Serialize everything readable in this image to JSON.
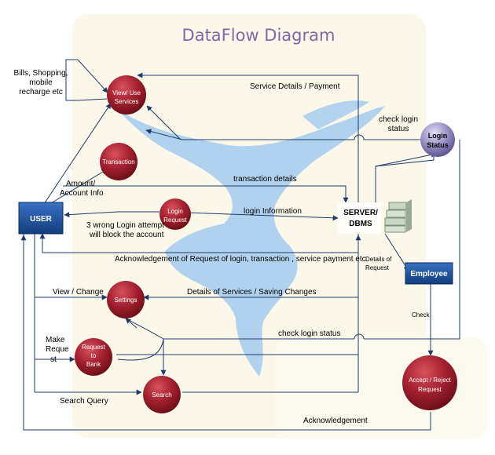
{
  "title": "DataFlow Diagram",
  "nodes": {
    "user": "USER",
    "view_use_1": "View/ Use",
    "view_use_2": "Services",
    "transaction": "Transaction",
    "login_req_1": "Login",
    "login_req_2": "Request",
    "settings": "Settings",
    "req_bank_1": "Request",
    "req_bank_2": "to",
    "req_bank_3": "Bank",
    "search": "Search",
    "login_status_1": "Login",
    "login_status_2": "Status",
    "server_1": "SERVER/",
    "server_2": "DBMS",
    "employee": "Employee",
    "accept_1": "Accept / Reject",
    "accept_2": "Request"
  },
  "labels": {
    "bills_1": "Bills, Shopping,",
    "bills_2": "mobile",
    "bills_3": "recharge etc",
    "service_details": "Service Details / Payment",
    "check_login_1": "check login",
    "check_login_2": "status",
    "amount_1": "Amount/",
    "amount_2": "Account Info",
    "transaction_details": "transaction details",
    "wrong_login_1": "3 wrong Login attempt",
    "wrong_login_2": "will block the account",
    "login_information": "login Information",
    "acknowledgement_req": "Acknowledgement of Request of login, transaction , service payment etc",
    "details_request_1": "Details of",
    "details_request_2": "Request",
    "view_change": "View / Change",
    "details_services": "Details of Services / Saving Changes",
    "check": "Check",
    "make_1": "Make",
    "make_2": "Reque",
    "make_3": "st",
    "check_login_status": "check login status",
    "search_query": "Search Query",
    "acknowledgement": "Acknowledgement"
  },
  "colors": {
    "node_red": "#9c1f2e",
    "node_purple": "#8e86b8",
    "box_blue": "#1b4f9e",
    "line": "#1f3a6e",
    "background_shape": "#9fc7ea",
    "panel": "#fbf8ea",
    "title": "#7a6aa8"
  }
}
